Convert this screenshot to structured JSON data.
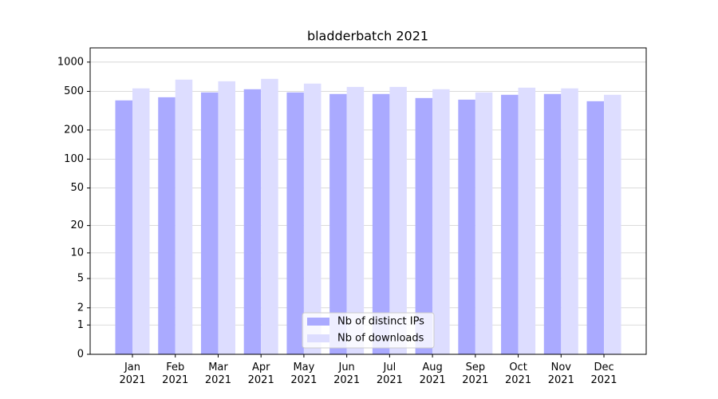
{
  "chart_data": {
    "type": "bar",
    "title": "bladderbatch 2021",
    "categories": [
      "Jan\n2021",
      "Feb\n2021",
      "Mar\n2021",
      "Apr\n2021",
      "May\n2021",
      "Jun\n2021",
      "Jul\n2021",
      "Aug\n2021",
      "Sep\n2021",
      "Oct\n2021",
      "Nov\n2021",
      "Dec\n2021"
    ],
    "series": [
      {
        "name": "Nb of distinct IPs",
        "color": "#aaaaff",
        "values": [
          404,
          435,
          488,
          526,
          488,
          470,
          470,
          427,
          411,
          461,
          470,
          396
        ]
      },
      {
        "name": "Nb of downloads",
        "color": "#ddddff",
        "values": [
          537,
          660,
          635,
          673,
          601,
          556,
          556,
          526,
          488,
          546,
          537,
          461
        ]
      }
    ],
    "yscale": "log1p",
    "ylim": [
      0,
      1400
    ],
    "yticks": [
      0,
      1,
      2,
      5,
      10,
      20,
      50,
      100,
      200,
      500,
      1000
    ],
    "grid": true,
    "legend": "lower center"
  }
}
